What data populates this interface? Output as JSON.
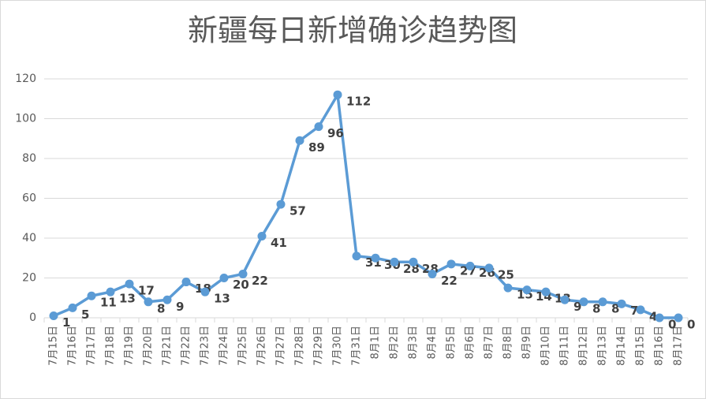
{
  "chart_data": {
    "type": "line",
    "title": "新疆每日新增确诊趋势图",
    "categories": [
      "7月15日",
      "7月16日",
      "7月17日",
      "7月18日",
      "7月19日",
      "7月20日",
      "7月21日",
      "7月22日",
      "7月23日",
      "7月24日",
      "7月25日",
      "7月26日",
      "7月27日",
      "7月28日",
      "7月29日",
      "7月30日",
      "7月31日",
      "8月1日",
      "8月2日",
      "8月3日",
      "8月4日",
      "8月5日",
      "8月6日",
      "8月7日",
      "8月8日",
      "8月9日",
      "8月10日",
      "8月11日",
      "8月12日",
      "8月13日",
      "8月14日",
      "8月15日",
      "8月16日",
      "8月17日"
    ],
    "values": [
      1,
      5,
      11,
      13,
      17,
      8,
      9,
      18,
      13,
      20,
      22,
      41,
      57,
      89,
      96,
      112,
      31,
      30,
      28,
      28,
      22,
      27,
      26,
      25,
      15,
      14,
      13,
      9,
      8,
      8,
      7,
      4,
      0,
      0
    ],
    "color": "#5b9bd5",
    "ylim": [
      0,
      120
    ],
    "yticks": [
      0,
      20,
      40,
      60,
      80,
      100,
      120
    ],
    "grid": true
  }
}
